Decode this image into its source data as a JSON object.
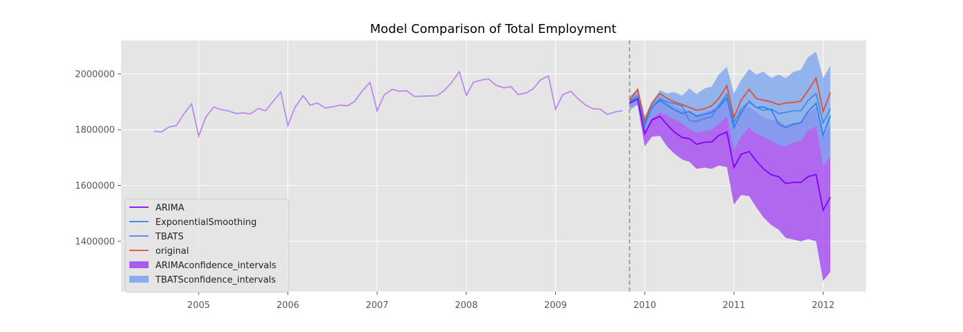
{
  "chart_data": {
    "type": "line",
    "title": "Model Comparison of Total Employment",
    "xlabel": "",
    "ylabel": "",
    "xlim": [
      2004.13,
      2012.48
    ],
    "ylim": [
      1220000,
      2120000
    ],
    "x_ticks": [
      2005,
      2006,
      2007,
      2008,
      2009,
      2010,
      2011,
      2012
    ],
    "y_ticks": [
      1400000,
      1600000,
      1800000,
      2000000
    ],
    "grid": true,
    "legend_position": "lower-left",
    "forecast_start": 2009.83,
    "history": {
      "x": [
        2004.5,
        2004.58,
        2004.67,
        2004.75,
        2004.83,
        2004.92,
        2005.0,
        2005.08,
        2005.17,
        2005.25,
        2005.33,
        2005.42,
        2005.5,
        2005.58,
        2005.67,
        2005.75,
        2005.83,
        2005.92,
        2006.0,
        2006.08,
        2006.17,
        2006.25,
        2006.33,
        2006.42,
        2006.5,
        2006.58,
        2006.67,
        2006.75,
        2006.83,
        2006.92,
        2007.0,
        2007.08,
        2007.17,
        2007.25,
        2007.33,
        2007.42,
        2007.5,
        2007.58,
        2007.67,
        2007.75,
        2007.83,
        2007.92,
        2008.0,
        2008.08,
        2008.17,
        2008.25,
        2008.33,
        2008.42,
        2008.5,
        2008.58,
        2008.67,
        2008.75,
        2008.83,
        2008.92,
        2009.0,
        2009.08,
        2009.17,
        2009.25,
        2009.33,
        2009.42,
        2009.5,
        2009.58,
        2009.67,
        2009.75
      ],
      "y": [
        1795000,
        1792000,
        1810000,
        1815000,
        1855000,
        1893000,
        1777000,
        1845000,
        1882000,
        1872000,
        1868000,
        1858000,
        1860000,
        1857000,
        1876000,
        1868000,
        1900000,
        1935000,
        1815000,
        1880000,
        1922000,
        1888000,
        1896000,
        1878000,
        1882000,
        1888000,
        1886000,
        1902000,
        1938000,
        1970000,
        1868000,
        1925000,
        1945000,
        1938000,
        1940000,
        1919000,
        1920000,
        1921000,
        1922000,
        1940000,
        1967000,
        2008000,
        1923000,
        1970000,
        1978000,
        1982000,
        1960000,
        1950000,
        1955000,
        1926000,
        1932000,
        1947000,
        1978000,
        1993000,
        1873000,
        1925000,
        1938000,
        1912000,
        1890000,
        1875000,
        1874000,
        1855000,
        1864000,
        1868000
      ]
    },
    "forecast_x": [
      2009.83,
      2009.92,
      2010.0,
      2010.08,
      2010.17,
      2010.25,
      2010.33,
      2010.42,
      2010.5,
      2010.58,
      2010.67,
      2010.75,
      2010.83,
      2010.92,
      2011.0,
      2011.08,
      2011.17,
      2011.25,
      2011.33,
      2011.42,
      2011.5,
      2011.58,
      2011.67,
      2011.75,
      2011.83,
      2011.92,
      2012.0,
      2012.08
    ],
    "series": [
      {
        "name": "ARIMA",
        "color": "#8000ff",
        "values": [
          1895000,
          1910000,
          1785000,
          1835000,
          1848000,
          1818000,
          1792000,
          1772000,
          1768000,
          1748000,
          1755000,
          1756000,
          1780000,
          1792000,
          1665000,
          1712000,
          1722000,
          1688000,
          1660000,
          1638000,
          1632000,
          1607000,
          1612000,
          1611000,
          1632000,
          1640000,
          1512000,
          1558000
        ]
      },
      {
        "name": "ExponentialSmoothing",
        "color": "#2c7fe8",
        "values": [
          1898000,
          1918000,
          1815000,
          1880000,
          1905000,
          1888000,
          1872000,
          1858000,
          1865000,
          1848000,
          1855000,
          1862000,
          1880000,
          1915000,
          1808000,
          1860000,
          1902000,
          1880000,
          1882000,
          1870000,
          1820000,
          1808000,
          1820000,
          1825000,
          1865000,
          1895000,
          1780000,
          1850000
        ]
      },
      {
        "name": "TBATS",
        "color": "#3d8ae8",
        "values": [
          1902000,
          1920000,
          1822000,
          1882000,
          1910000,
          1900000,
          1894000,
          1884000,
          1832000,
          1830000,
          1840000,
          1846000,
          1886000,
          1928000,
          1826000,
          1874000,
          1900000,
          1880000,
          1870000,
          1874000,
          1858000,
          1862000,
          1868000,
          1868000,
          1905000,
          1930000,
          1825000,
          1875000
        ]
      },
      {
        "name": "original",
        "color": "#e24a33",
        "values": [
          1905000,
          1945000,
          1830000,
          1895000,
          1930000,
          1912000,
          1900000,
          1890000,
          1880000,
          1870000,
          1875000,
          1886000,
          1912000,
          1958000,
          1843000,
          1905000,
          1945000,
          1912000,
          1906000,
          1900000,
          1890000,
          1896000,
          1898000,
          1903000,
          1940000,
          1985000,
          1865000,
          1933000
        ]
      }
    ],
    "bands": [
      {
        "name": "ARIMAconfidence_intervals",
        "color": "#a24af0",
        "upper": [
          1912000,
          1930000,
          1830000,
          1895000,
          1920000,
          1905000,
          1885000,
          1872000,
          1868000,
          1855000,
          1862000,
          1872000,
          1892000,
          1918000,
          1815000,
          1868000,
          1882000,
          1862000,
          1845000,
          1835000,
          1832000,
          1815000,
          1825000,
          1828000,
          1858000,
          1880000,
          1772000,
          1820000
        ],
        "lower": [
          1878000,
          1888000,
          1740000,
          1775000,
          1778000,
          1740000,
          1715000,
          1693000,
          1685000,
          1660000,
          1664000,
          1660000,
          1672000,
          1666000,
          1532000,
          1566000,
          1562000,
          1522000,
          1486000,
          1458000,
          1442000,
          1412000,
          1406000,
          1400000,
          1408000,
          1400000,
          1258000,
          1290000
        ]
      },
      {
        "name": "TBATSconfidence_intervals",
        "color": "#7ea6ee",
        "upper": [
          1920000,
          1945000,
          1850000,
          1900000,
          1942000,
          1930000,
          1935000,
          1922000,
          1948000,
          1928000,
          1948000,
          1955000,
          1998000,
          2025000,
          1930000,
          1978000,
          2018000,
          1998000,
          2008000,
          1985000,
          1998000,
          1985000,
          2008000,
          2015000,
          2060000,
          2080000,
          1985000,
          2030000
        ]
      },
      {
        "name": "TBATSconfidence_intervals_lower_part",
        "color": "#7ea6ee",
        "legend": false,
        "lower": [
          1868000,
          1892000,
          1795000,
          1842000,
          1862000,
          1850000,
          1838000,
          1822000,
          1803000,
          1790000,
          1795000,
          1800000,
          1822000,
          1848000,
          1726000,
          1776000,
          1808000,
          1785000,
          1775000,
          1760000,
          1745000,
          1740000,
          1755000,
          1760000,
          1798000,
          1812000,
          1670000,
          1705000
        ]
      }
    ]
  }
}
